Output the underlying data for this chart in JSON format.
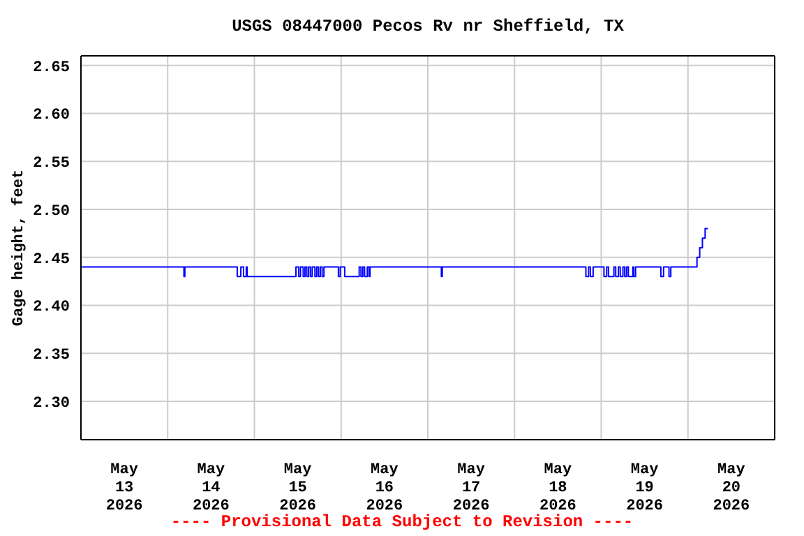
{
  "chart_data": {
    "type": "step",
    "title": "USGS 08447000 Pecos Rv nr Sheffield, TX",
    "ylabel": "Gage height, feet",
    "annotations": [
      "---- Provisional Data Subject to Revision ----"
    ],
    "x": [
      "2026-05-13T00:15",
      "2026-05-14T04:15",
      "2026-05-14T04:30",
      "2026-05-14T04:45",
      "2026-05-14T19:00",
      "2026-05-14T19:15",
      "2026-05-14T20:00",
      "2026-05-14T20:15",
      "2026-05-14T20:45",
      "2026-05-14T21:00",
      "2026-05-14T21:30",
      "2026-05-14T21:45",
      "2026-05-14T22:00",
      "2026-05-15T11:15",
      "2026-05-15T11:30",
      "2026-05-15T12:15",
      "2026-05-15T12:45",
      "2026-05-15T13:30",
      "2026-05-15T14:00",
      "2026-05-15T14:30",
      "2026-05-15T15:00",
      "2026-05-15T15:30",
      "2026-05-15T16:00",
      "2026-05-15T16:45",
      "2026-05-15T17:15",
      "2026-05-15T17:45",
      "2026-05-15T18:15",
      "2026-05-15T18:45",
      "2026-05-15T19:15",
      "2026-05-15T23:00",
      "2026-05-15T23:15",
      "2026-05-15T23:45",
      "2026-05-16T00:30",
      "2026-05-16T01:00",
      "2026-05-16T04:45",
      "2026-05-16T05:00",
      "2026-05-16T05:30",
      "2026-05-16T06:00",
      "2026-05-16T06:30",
      "2026-05-16T07:15",
      "2026-05-16T07:45",
      "2026-05-16T08:00",
      "2026-05-17T03:30",
      "2026-05-17T03:45",
      "2026-05-17T04:00",
      "2026-05-18T19:30",
      "2026-05-18T19:45",
      "2026-05-18T20:30",
      "2026-05-18T21:00",
      "2026-05-18T21:45",
      "2026-05-19T00:30",
      "2026-05-19T00:45",
      "2026-05-19T01:30",
      "2026-05-19T02:00",
      "2026-05-19T03:00",
      "2026-05-19T03:30",
      "2026-05-19T04:00",
      "2026-05-19T04:45",
      "2026-05-19T05:15",
      "2026-05-19T06:00",
      "2026-05-19T06:30",
      "2026-05-19T07:00",
      "2026-05-19T07:30",
      "2026-05-19T08:15",
      "2026-05-19T08:45",
      "2026-05-19T09:00",
      "2026-05-19T09:30",
      "2026-05-19T16:15",
      "2026-05-19T16:30",
      "2026-05-19T17:15",
      "2026-05-19T18:30",
      "2026-05-19T18:45",
      "2026-05-19T19:15",
      "2026-05-20T01:45",
      "2026-05-20T02:30",
      "2026-05-20T03:15",
      "2026-05-20T04:00",
      "2026-05-20T04:45",
      "2026-05-20T05:30"
    ],
    "series": [
      {
        "color": "#0000ff",
        "values": [
          2.44,
          2.44,
          2.43,
          2.44,
          2.44,
          2.43,
          2.43,
          2.44,
          2.44,
          2.43,
          2.43,
          2.44,
          2.43,
          2.43,
          2.44,
          2.43,
          2.44,
          2.43,
          2.44,
          2.43,
          2.44,
          2.43,
          2.44,
          2.43,
          2.44,
          2.43,
          2.44,
          2.43,
          2.44,
          2.44,
          2.43,
          2.44,
          2.44,
          2.43,
          2.43,
          2.44,
          2.43,
          2.44,
          2.43,
          2.44,
          2.43,
          2.44,
          2.44,
          2.43,
          2.44,
          2.44,
          2.43,
          2.44,
          2.43,
          2.44,
          2.44,
          2.43,
          2.44,
          2.43,
          2.43,
          2.44,
          2.43,
          2.44,
          2.43,
          2.44,
          2.43,
          2.44,
          2.43,
          2.43,
          2.44,
          2.43,
          2.44,
          2.44,
          2.43,
          2.44,
          2.44,
          2.43,
          2.44,
          2.44,
          2.45,
          2.46,
          2.47,
          2.48,
          2.48
        ]
      }
    ],
    "xlim": [
      "2026-05-13T00:00",
      "2026-05-21T00:00"
    ],
    "xticks": [
      {
        "value": "2026-05-13T00:00",
        "label": null
      },
      {
        "value": "2026-05-13T12:00",
        "label": "May 13 2026"
      },
      {
        "value": "2026-05-14T00:00",
        "label": null
      },
      {
        "value": "2026-05-14T12:00",
        "label": "May 14 2026"
      },
      {
        "value": "2026-05-15T00:00",
        "label": null
      },
      {
        "value": "2026-05-15T12:00",
        "label": "May 15 2026"
      },
      {
        "value": "2026-05-16T00:00",
        "label": null
      },
      {
        "value": "2026-05-16T12:00",
        "label": "May 16 2026"
      },
      {
        "value": "2026-05-17T00:00",
        "label": null
      },
      {
        "value": "2026-05-17T12:00",
        "label": "May 17 2026"
      },
      {
        "value": "2026-05-18T00:00",
        "label": null
      },
      {
        "value": "2026-05-18T12:00",
        "label": "May 18 2026"
      },
      {
        "value": "2026-05-19T00:00",
        "label": null
      },
      {
        "value": "2026-05-19T12:00",
        "label": "May 19 2026"
      },
      {
        "value": "2026-05-20T00:00",
        "label": null
      },
      {
        "value": "2026-05-20T12:00",
        "label": "May 20 2026"
      },
      {
        "value": "2026-05-21T00:00",
        "label": null
      }
    ],
    "ylim": [
      2.26,
      2.66
    ],
    "yticks": [
      {
        "value": 2.3,
        "label": "2.30"
      },
      {
        "value": 2.35,
        "label": "2.35"
      },
      {
        "value": 2.4,
        "label": "2.40"
      },
      {
        "value": 2.45,
        "label": "2.45"
      },
      {
        "value": 2.5,
        "label": "2.50"
      },
      {
        "value": 2.55,
        "label": "2.55"
      },
      {
        "value": 2.6,
        "label": "2.60"
      },
      {
        "value": 2.65,
        "label": "2.65"
      }
    ],
    "grid": true,
    "marker": "none",
    "line_style": "solid"
  }
}
